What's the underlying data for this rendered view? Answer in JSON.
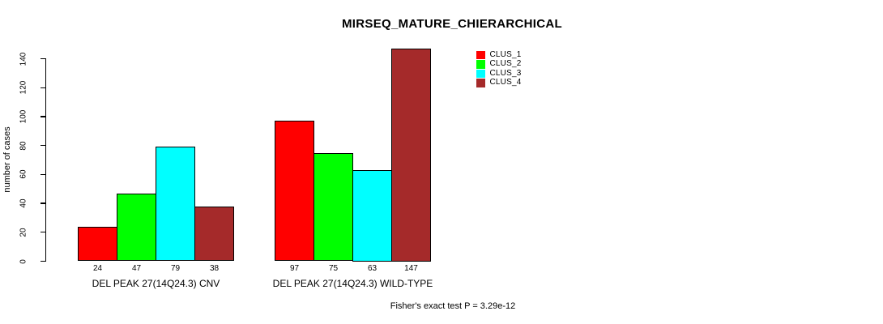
{
  "title": "MIRSEQ_MATURE_CHIERARCHICAL",
  "ylabel": "number of cases",
  "footer": "Fisher's exact test P = 3.29e-12",
  "chart_data": {
    "type": "bar",
    "title": "MIRSEQ_MATURE_CHIERARCHICAL",
    "ylabel": "number of cases",
    "xlabel": "",
    "categories": [
      "DEL PEAK 27(14Q24.3) CNV",
      "DEL PEAK 27(14Q24.3) WILD-TYPE"
    ],
    "series": [
      {
        "name": "CLUS_1",
        "color": "#ff0000",
        "values": [
          24,
          97
        ]
      },
      {
        "name": "CLUS_2",
        "color": "#00ff00",
        "values": [
          47,
          75
        ]
      },
      {
        "name": "CLUS_3",
        "color": "#00ffff",
        "values": [
          79,
          63
        ]
      },
      {
        "name": "CLUS_4",
        "color": "#a52a2a",
        "values": [
          38,
          147
        ]
      }
    ],
    "yticks": [
      0,
      20,
      40,
      60,
      80,
      100,
      120,
      140
    ],
    "ylim": [
      0,
      147
    ],
    "grid": false,
    "bar_value_labels_shown": true,
    "legend_position": "top-right",
    "annotation": "Fisher's exact test P = 3.29e-12",
    "background": "#ffffff",
    "axis_color": "#000000",
    "bar_border_color": "#000000"
  }
}
